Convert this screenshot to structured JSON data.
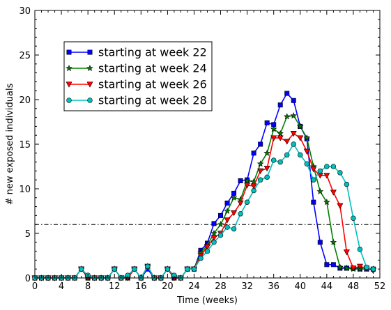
{
  "chart_data": {
    "type": "line",
    "title": "",
    "xlabel": "Time (weeks)",
    "ylabel": "# new exposed individuals",
    "xlim": [
      0,
      52
    ],
    "ylim": [
      0,
      30
    ],
    "xticks": [
      0,
      4,
      8,
      12,
      16,
      20,
      24,
      28,
      32,
      36,
      40,
      44,
      48,
      52
    ],
    "yticks": [
      0,
      5,
      10,
      15,
      20,
      25,
      30
    ],
    "xtick_labels": [
      "0",
      "4",
      "8",
      "12",
      "16",
      "20",
      "24",
      "28",
      "32",
      "36",
      "40",
      "44",
      "48",
      "52"
    ],
    "ytick_labels": [
      "0",
      "5",
      "10",
      "15",
      "20",
      "25",
      "30"
    ],
    "grid": false,
    "legend_position": "upper-left",
    "threshold": {
      "y": 6,
      "style": "dash-dot",
      "color": "#000000"
    },
    "series": [
      {
        "name": "starting at week 22",
        "color": "#0000ff",
        "marker": "square",
        "x": [
          0,
          1,
          2,
          3,
          4,
          5,
          6,
          7,
          8,
          9,
          10,
          11,
          12,
          13,
          14,
          15,
          16,
          17,
          18,
          19,
          20,
          21,
          22,
          23,
          24,
          25,
          26,
          27,
          28,
          29,
          30,
          31,
          32,
          33,
          34,
          35,
          36,
          37,
          38,
          39,
          40,
          41,
          42,
          43,
          44,
          45,
          46,
          47,
          48,
          49,
          50,
          51
        ],
        "y": [
          0,
          0,
          0,
          0,
          0,
          0,
          0,
          1,
          0,
          0,
          0,
          0,
          1,
          0,
          0,
          1,
          0,
          1,
          0,
          0,
          1,
          0,
          0,
          1,
          1,
          3.1,
          3.9,
          6.1,
          7,
          8.4,
          9.5,
          10.9,
          11,
          14,
          15,
          17.4,
          17.2,
          19.4,
          20.7,
          19.9,
          17,
          15.6,
          8.5,
          4,
          1.5,
          1.5,
          1.1,
          1.1,
          1.1,
          1,
          1,
          1
        ]
      },
      {
        "name": "starting at week 24",
        "color": "#008000",
        "marker": "star",
        "x": [
          0,
          1,
          2,
          3,
          4,
          5,
          6,
          7,
          8,
          9,
          10,
          11,
          12,
          13,
          14,
          15,
          16,
          17,
          18,
          19,
          20,
          21,
          22,
          23,
          24,
          25,
          26,
          27,
          28,
          29,
          30,
          31,
          32,
          33,
          34,
          35,
          36,
          37,
          38,
          39,
          40,
          41,
          42,
          43,
          44,
          45,
          46,
          47,
          48,
          49,
          50,
          51
        ],
        "y": [
          0,
          0,
          0,
          0,
          0,
          0,
          0,
          1,
          0,
          0,
          0,
          0,
          1,
          0,
          0,
          1,
          0,
          1.3,
          0,
          0,
          1,
          0,
          0,
          1,
          1,
          2.8,
          3.7,
          5,
          6,
          7.5,
          9,
          8.8,
          10.9,
          10.8,
          12.8,
          14,
          16.7,
          16.2,
          18.1,
          18.2,
          17,
          15.7,
          12.5,
          9.7,
          8.5,
          4,
          1.2,
          1.1,
          1,
          1,
          1,
          1
        ]
      },
      {
        "name": "starting at week 26",
        "color": "#ff0000",
        "marker": "triangle-down",
        "x": [
          0,
          1,
          2,
          3,
          4,
          5,
          6,
          7,
          8,
          9,
          10,
          11,
          12,
          13,
          14,
          15,
          16,
          17,
          18,
          19,
          20,
          21,
          22,
          23,
          24,
          25,
          26,
          27,
          28,
          29,
          30,
          31,
          32,
          33,
          34,
          35,
          36,
          37,
          38,
          39,
          40,
          41,
          42,
          43,
          44,
          45,
          46,
          47,
          48,
          49,
          50,
          51
        ],
        "y": [
          0,
          0,
          0,
          0,
          0,
          0,
          0,
          1,
          0,
          0,
          0,
          0,
          1,
          0,
          0,
          1,
          0,
          1.3,
          0,
          0,
          1,
          0,
          0,
          1,
          1,
          2.5,
          3.5,
          4.5,
          5,
          6.5,
          7.3,
          8.4,
          10.4,
          10.3,
          12,
          12.3,
          15.7,
          15.7,
          15.3,
          16.2,
          15.7,
          14.2,
          12.2,
          11.5,
          11.5,
          9.6,
          8.1,
          2.9,
          1.1,
          1.3,
          1.1,
          0.8
        ]
      },
      {
        "name": "starting at week 28",
        "color": "#00bfbf",
        "marker": "circle",
        "x": [
          0,
          1,
          2,
          3,
          4,
          5,
          6,
          7,
          8,
          9,
          10,
          11,
          12,
          13,
          14,
          15,
          16,
          17,
          18,
          19,
          20,
          21,
          22,
          23,
          24,
          25,
          26,
          27,
          28,
          29,
          30,
          31,
          32,
          33,
          34,
          35,
          36,
          37,
          38,
          39,
          40,
          41,
          42,
          43,
          44,
          45,
          46,
          47,
          48,
          49,
          50,
          51
        ],
        "y": [
          0,
          0,
          0,
          0,
          0,
          0,
          0,
          1,
          0.3,
          0,
          0,
          0,
          1,
          0,
          0.3,
          1,
          0,
          1.3,
          0,
          0,
          1,
          0.3,
          0,
          1,
          1,
          2.2,
          3,
          4,
          4.8,
          5.7,
          5.5,
          7.2,
          8.5,
          9.8,
          11,
          11.3,
          13.2,
          13,
          13.8,
          15,
          13.8,
          12.8,
          11,
          12,
          12.5,
          12.5,
          11.8,
          10.5,
          6.7,
          3.2,
          1.2,
          1
        ]
      }
    ]
  }
}
